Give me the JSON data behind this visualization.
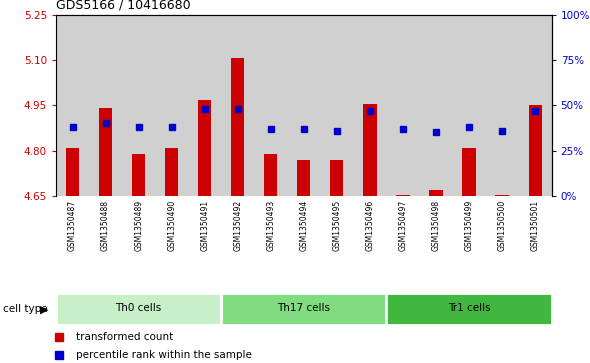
{
  "title": "GDS5166 / 10416680",
  "samples": [
    "GSM1350487",
    "GSM1350488",
    "GSM1350489",
    "GSM1350490",
    "GSM1350491",
    "GSM1350492",
    "GSM1350493",
    "GSM1350494",
    "GSM1350495",
    "GSM1350496",
    "GSM1350497",
    "GSM1350498",
    "GSM1350499",
    "GSM1350500",
    "GSM1350501"
  ],
  "bar_values": [
    4.81,
    4.94,
    4.79,
    4.81,
    4.967,
    5.105,
    4.79,
    4.77,
    4.77,
    4.955,
    4.655,
    4.67,
    4.81,
    4.655,
    4.95
  ],
  "blue_values": [
    38,
    40,
    38,
    38,
    48,
    48,
    37,
    37,
    36,
    47,
    37,
    35,
    38,
    36,
    47
  ],
  "ymin": 4.65,
  "ymax": 5.25,
  "yticks": [
    4.65,
    4.8,
    4.95,
    5.1,
    5.25
  ],
  "y2min": 0,
  "y2max": 100,
  "y2ticks": [
    0,
    25,
    50,
    75,
    100
  ],
  "bar_color": "#cc0000",
  "blue_color": "#0000cc",
  "cell_groups": [
    {
      "label": "Th0 cells",
      "start": 0,
      "end": 5,
      "color": "#c8f0c8"
    },
    {
      "label": "Th17 cells",
      "start": 5,
      "end": 10,
      "color": "#80dc80"
    },
    {
      "label": "Tr1 cells",
      "start": 10,
      "end": 15,
      "color": "#40b840"
    }
  ],
  "legend_items": [
    {
      "label": "transformed count",
      "color": "#cc0000"
    },
    {
      "label": "percentile rank within the sample",
      "color": "#0000cc"
    }
  ],
  "cell_type_label": "cell type",
  "bg_gray": "#d0d0d0",
  "plot_bg": "#ffffff"
}
